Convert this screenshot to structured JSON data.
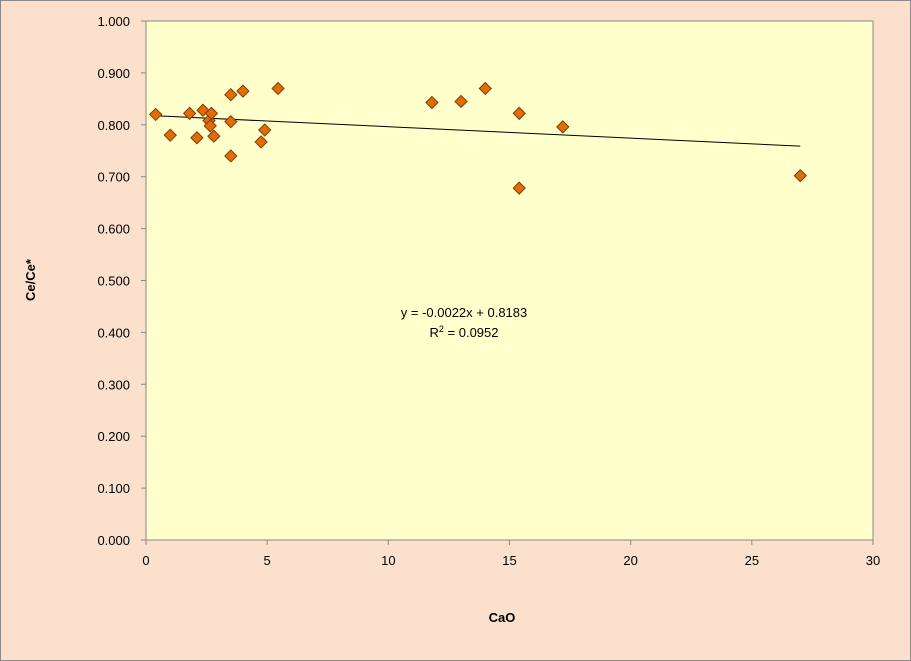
{
  "chart_data": {
    "type": "scatter",
    "title": "",
    "xlabel": "CaO",
    "ylabel": "Ce/Ce*",
    "xlim": [
      0,
      30
    ],
    "ylim": [
      0,
      1.0
    ],
    "xticks": [
      "0",
      "5",
      "10",
      "15",
      "20",
      "25",
      "30"
    ],
    "yticks": [
      "0.000",
      "0.100",
      "0.200",
      "0.300",
      "0.400",
      "0.500",
      "0.600",
      "0.700",
      "0.800",
      "0.900",
      "1.000"
    ],
    "grid": false,
    "legend": "none",
    "colors": {
      "plot_background": "#ffffcc",
      "chart_background": "#fbe1cd",
      "marker_fill": "#e36c09",
      "marker_edge": "#7f3c05",
      "trendline": "#000000"
    },
    "marker": "diamond",
    "points": [
      {
        "x": 0.4,
        "y": 0.82
      },
      {
        "x": 1.0,
        "y": 0.78
      },
      {
        "x": 1.8,
        "y": 0.822
      },
      {
        "x": 2.1,
        "y": 0.775
      },
      {
        "x": 2.35,
        "y": 0.828
      },
      {
        "x": 2.6,
        "y": 0.808
      },
      {
        "x": 2.7,
        "y": 0.822
      },
      {
        "x": 2.65,
        "y": 0.798
      },
      {
        "x": 2.8,
        "y": 0.778
      },
      {
        "x": 3.5,
        "y": 0.858
      },
      {
        "x": 3.5,
        "y": 0.806
      },
      {
        "x": 3.5,
        "y": 0.74
      },
      {
        "x": 4.0,
        "y": 0.865
      },
      {
        "x": 4.75,
        "y": 0.767
      },
      {
        "x": 4.9,
        "y": 0.79
      },
      {
        "x": 5.45,
        "y": 0.87
      },
      {
        "x": 11.8,
        "y": 0.843
      },
      {
        "x": 13.0,
        "y": 0.845
      },
      {
        "x": 14.0,
        "y": 0.87
      },
      {
        "x": 15.4,
        "y": 0.822
      },
      {
        "x": 15.4,
        "y": 0.678
      },
      {
        "x": 17.2,
        "y": 0.796
      },
      {
        "x": 27.0,
        "y": 0.702
      }
    ],
    "trendline": {
      "type": "linear",
      "slope": -0.0022,
      "intercept": 0.8183,
      "x_range": [
        0.4,
        27.0
      ],
      "equation_label": "y = -0.0022x + 0.8183",
      "r2_label_prefix": "R",
      "r2_label_sup": "2",
      "r2_label_suffix": " = 0.0952"
    }
  }
}
